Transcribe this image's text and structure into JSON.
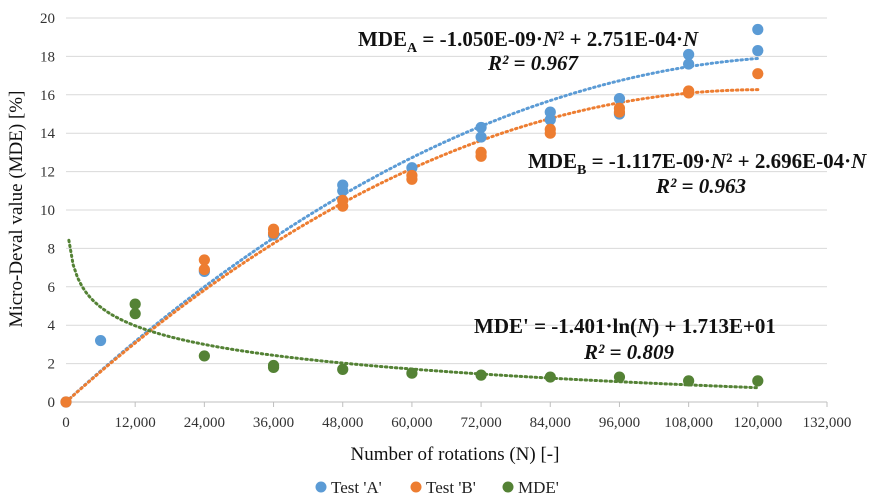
{
  "chart_data": {
    "type": "scatter",
    "xlabel": "Number of rotations (N) [-]",
    "ylabel": "Micro-Deval value (MDE) [%]",
    "xlim": [
      0,
      132000
    ],
    "ylim": [
      0,
      20
    ],
    "xticks": [
      0,
      12000,
      24000,
      36000,
      48000,
      60000,
      72000,
      84000,
      96000,
      108000,
      120000,
      132000
    ],
    "xtick_labels": [
      "0",
      "12,000",
      "24,000",
      "36,000",
      "48,000",
      "60,000",
      "72,000",
      "84,000",
      "96,000",
      "108,000",
      "120,000",
      "132,000"
    ],
    "yticks": [
      0,
      2,
      4,
      6,
      8,
      10,
      12,
      14,
      16,
      18,
      20
    ],
    "ytick_labels": [
      "0",
      "2",
      "4",
      "6",
      "8",
      "10",
      "12",
      "14",
      "16",
      "18",
      "20"
    ],
    "grid": "horizontal",
    "legend_position": "bottom",
    "series": [
      {
        "name": "Test 'A'",
        "color": "#5b9bd5",
        "points": [
          [
            0,
            0
          ],
          [
            6000,
            3.2
          ],
          [
            24000,
            6.8
          ],
          [
            36000,
            8.7
          ],
          [
            48000,
            11.0
          ],
          [
            48000,
            11.3
          ],
          [
            60000,
            12.2
          ],
          [
            72000,
            13.8
          ],
          [
            72000,
            14.3
          ],
          [
            84000,
            14.7
          ],
          [
            84000,
            15.1
          ],
          [
            96000,
            15.0
          ],
          [
            96000,
            15.8
          ],
          [
            108000,
            17.6
          ],
          [
            108000,
            18.1
          ],
          [
            120000,
            18.3
          ],
          [
            120000,
            19.4
          ]
        ],
        "trendline": {
          "type": "polynomial",
          "a": -1.05e-09,
          "b": 0.0002751
        }
      },
      {
        "name": "Test 'B'",
        "color": "#ed7d31",
        "points": [
          [
            0,
            0
          ],
          [
            24000,
            6.9
          ],
          [
            24000,
            7.4
          ],
          [
            36000,
            8.8
          ],
          [
            36000,
            9.0
          ],
          [
            48000,
            10.2
          ],
          [
            48000,
            10.5
          ],
          [
            60000,
            11.6
          ],
          [
            60000,
            11.8
          ],
          [
            72000,
            12.8
          ],
          [
            72000,
            13.0
          ],
          [
            84000,
            14.0
          ],
          [
            84000,
            14.2
          ],
          [
            96000,
            15.1
          ],
          [
            96000,
            15.3
          ],
          [
            108000,
            16.1
          ],
          [
            108000,
            16.2
          ],
          [
            120000,
            17.1
          ]
        ],
        "trendline": {
          "type": "polynomial",
          "a": -1.117e-09,
          "b": 0.0002696
        }
      },
      {
        "name": "MDE'",
        "color": "#548235",
        "points": [
          [
            12000,
            4.6
          ],
          [
            12000,
            5.1
          ],
          [
            24000,
            2.4
          ],
          [
            36000,
            1.8
          ],
          [
            36000,
            1.9
          ],
          [
            48000,
            1.7
          ],
          [
            60000,
            1.5
          ],
          [
            72000,
            1.4
          ],
          [
            84000,
            1.3
          ],
          [
            96000,
            1.3
          ],
          [
            108000,
            1.1
          ],
          [
            120000,
            1.1
          ]
        ],
        "trendline": {
          "type": "logarithmic",
          "a": -1.401,
          "b": 17.13,
          "x_start": 500
        }
      }
    ],
    "annotations": [
      {
        "id": "A",
        "prefix": "MDE",
        "sub": "A",
        "rest": " = -1.050E-09·",
        "N1": "N",
        "pow": "² + 2.751E-04·",
        "N2": "N",
        "r2": "R² = 0.967"
      },
      {
        "id": "B",
        "prefix": "MDE",
        "sub": "B",
        "rest": " = -1.117E-09·",
        "N1": "N",
        "pow": "² + 2.696E-04·",
        "N2": "N",
        "r2": "R² = 0.963"
      },
      {
        "id": "C",
        "text_pre": "MDE' = -1.401·ln(",
        "N": "N",
        "text_post": ") + 1.713E+01",
        "r2": "R² = 0.809"
      }
    ]
  }
}
